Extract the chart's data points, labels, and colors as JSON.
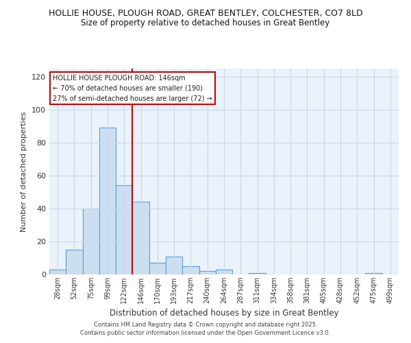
{
  "title": "HOLLIE HOUSE, PLOUGH ROAD, GREAT BENTLEY, COLCHESTER, CO7 8LD",
  "subtitle": "Size of property relative to detached houses in Great Bentley",
  "xlabel": "Distribution of detached houses by size in Great Bentley",
  "ylabel": "Number of detached properties",
  "bar_color": "#ccdff2",
  "bar_edge_color": "#5b9bd5",
  "background_color": "#ffffff",
  "plot_bg_color": "#eaf2fb",
  "grid_color": "#c8d8e8",
  "bin_labels": [
    "28sqm",
    "52sqm",
    "75sqm",
    "99sqm",
    "122sqm",
    "146sqm",
    "170sqm",
    "193sqm",
    "217sqm",
    "240sqm",
    "264sqm",
    "287sqm",
    "311sqm",
    "334sqm",
    "358sqm",
    "381sqm",
    "405sqm",
    "428sqm",
    "452sqm",
    "475sqm",
    "499sqm"
  ],
  "bin_values": [
    3,
    15,
    40,
    89,
    54,
    44,
    7,
    11,
    5,
    2,
    3,
    0,
    1,
    0,
    0,
    0,
    0,
    0,
    0,
    1,
    0
  ],
  "vline_x": 5,
  "vline_color": "#cc0000",
  "ylim": [
    0,
    125
  ],
  "yticks": [
    0,
    20,
    40,
    60,
    80,
    100,
    120
  ],
  "annotation_title": "HOLLIE HOUSE PLOUGH ROAD: 146sqm",
  "annotation_line1": "← 70% of detached houses are smaller (190)",
  "annotation_line2": "27% of semi-detached houses are larger (72) →",
  "footer1": "Contains HM Land Registry data © Crown copyright and database right 2025.",
  "footer2": "Contains public sector information licensed under the Open Government Licence v3.0."
}
